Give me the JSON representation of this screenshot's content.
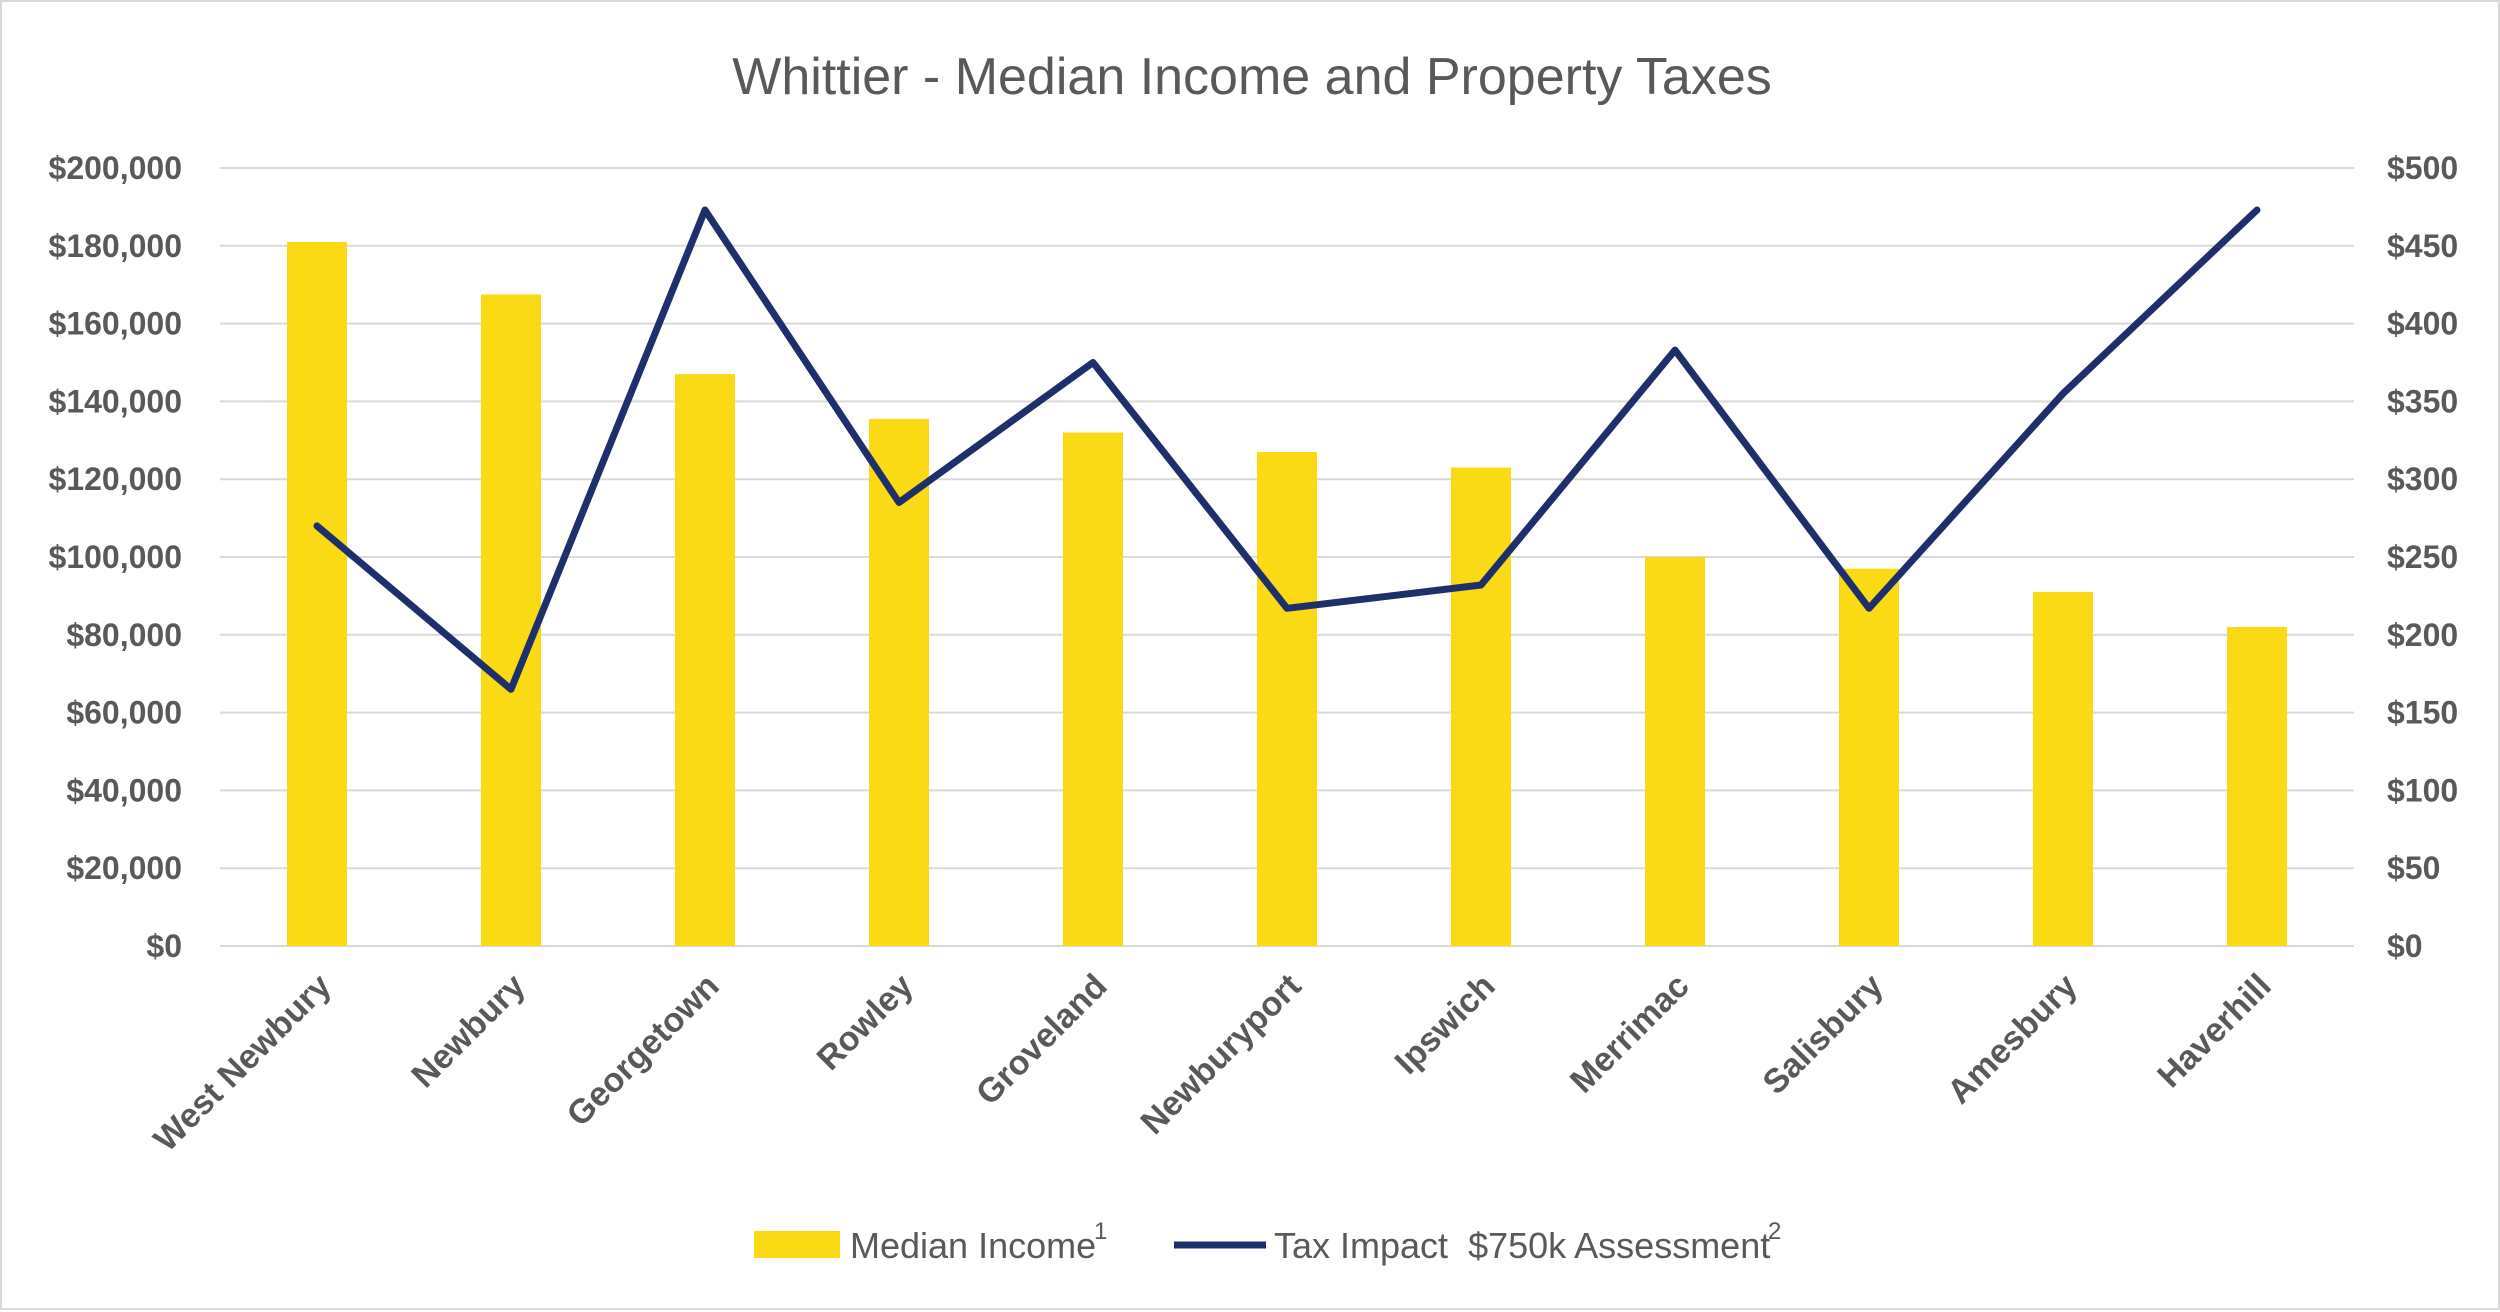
{
  "chart_data": {
    "type": "bar",
    "title": "Whittier - Median Income and Property Taxes",
    "categories": [
      "West Newbury",
      "Newbury",
      "Georgetown",
      "Rowley",
      "Groveland",
      "Newburyport",
      "Ipswich",
      "Merrimac",
      "Salisbury",
      "Amesbury",
      "Haverhill"
    ],
    "series": [
      {
        "name": "Median Income",
        "name_superscript": "1",
        "type": "bar",
        "axis": "left",
        "color": "#f9da14",
        "values": [
          181000,
          167500,
          147000,
          135500,
          132000,
          127000,
          123000,
          100000,
          97000,
          91000,
          82000
        ]
      },
      {
        "name": "Tax Impact  $750k Assessment",
        "name_superscript": "2",
        "type": "line",
        "axis": "right",
        "color": "#1f2f6b",
        "values": [
          270,
          165,
          473,
          285,
          375,
          217,
          232,
          383,
          217,
          355,
          473
        ]
      }
    ],
    "y_left": {
      "ylim": [
        0,
        200000
      ],
      "ticks": [
        0,
        20000,
        40000,
        60000,
        80000,
        100000,
        120000,
        140000,
        160000,
        180000,
        200000
      ],
      "tick_labels": [
        "$0",
        "$20,000",
        "$40,000",
        "$60,000",
        "$80,000",
        "$100,000",
        "$120,000",
        "$140,000",
        "$160,000",
        "$180,000",
        "$200,000"
      ]
    },
    "y_right": {
      "ylim": [
        0,
        500
      ],
      "ticks": [
        0,
        50,
        100,
        150,
        200,
        250,
        300,
        350,
        400,
        450,
        500
      ],
      "tick_labels": [
        "$0",
        "$50",
        "$100",
        "$150",
        "$200",
        "$250",
        "$300",
        "$350",
        "$400",
        "$450",
        "$500"
      ]
    },
    "grid": true,
    "grid_color": "#d9d9d9",
    "legend_position": "bottom"
  }
}
